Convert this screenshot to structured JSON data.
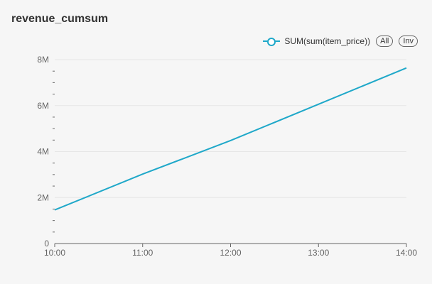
{
  "title": "revenue_cumsum",
  "legend": {
    "series_label": "SUM(sum(item_price))",
    "all_label": "All",
    "inv_label": "Inv"
  },
  "colors": {
    "series": "#1fa8c9",
    "grid": "#e6e6e6",
    "axis": "#666666",
    "text": "#333333"
  },
  "chart_data": {
    "type": "line",
    "title": "revenue_cumsum",
    "x": [
      "10:00",
      "11:00",
      "12:00",
      "13:00",
      "14:00"
    ],
    "series": [
      {
        "name": "SUM(sum(item_price))",
        "values": [
          1460000,
          3020000,
          4480000,
          6060000,
          7640000
        ]
      }
    ],
    "yticks": [
      {
        "value": 0,
        "label": "0"
      },
      {
        "value": 2000000,
        "label": "2M"
      },
      {
        "value": 4000000,
        "label": "4M"
      },
      {
        "value": 6000000,
        "label": "6M"
      },
      {
        "value": 8000000,
        "label": "8M"
      }
    ],
    "ylim": [
      0,
      8000000
    ],
    "xlabel": "",
    "ylabel": "",
    "grid": true,
    "legend_position": "top-right"
  }
}
